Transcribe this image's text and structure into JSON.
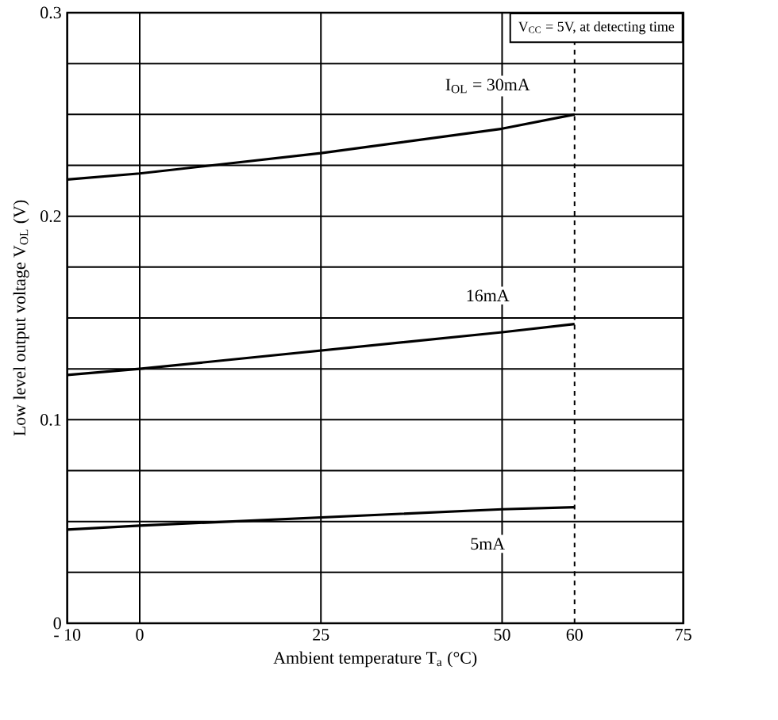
{
  "chart_data": {
    "type": "line",
    "xlabel": "Ambient temperature T$_{a}$ (°C)",
    "ylabel": "Low level output voltage V$_{OL}$ (V)",
    "annotations": [
      "V$_{CC}$ = 5V, at detecting time"
    ],
    "x": [
      -10,
      0,
      25,
      50,
      60
    ],
    "series": [
      {
        "name": "I$_{OL}$ = 30mA",
        "color": "#000000",
        "values": [
          0.218,
          0.221,
          0.231,
          0.243,
          0.25
        ]
      },
      {
        "name": "16mA",
        "color": "#000000",
        "values": [
          0.122,
          0.125,
          0.134,
          0.143,
          0.147
        ]
      },
      {
        "name": "5mA",
        "color": "#000000",
        "values": [
          0.046,
          0.048,
          0.052,
          0.056,
          0.057
        ]
      }
    ],
    "xlim": [
      -10,
      75
    ],
    "ylim": [
      0,
      0.3
    ],
    "xticks": [
      {
        "value": -10,
        "label": "- 10"
      },
      0,
      25,
      50,
      60,
      75
    ],
    "yticks": [
      0,
      {
        "value": 0.025,
        "label": null
      },
      {
        "value": 0.05,
        "label": null
      },
      {
        "value": 0.075,
        "label": null
      },
      0.1,
      {
        "value": 0.125,
        "label": null
      },
      {
        "value": 0.15,
        "label": null
      },
      {
        "value": 0.175,
        "label": null
      },
      0.2,
      {
        "value": 0.225,
        "label": null
      },
      {
        "value": 0.25,
        "label": null
      },
      {
        "value": 0.275,
        "label": null
      },
      0.3
    ],
    "ref_lines": [
      {
        "axis": "x",
        "value": 60,
        "line_style": "dashed"
      }
    ],
    "grid": true,
    "marker": "none",
    "line_style": "solid"
  }
}
